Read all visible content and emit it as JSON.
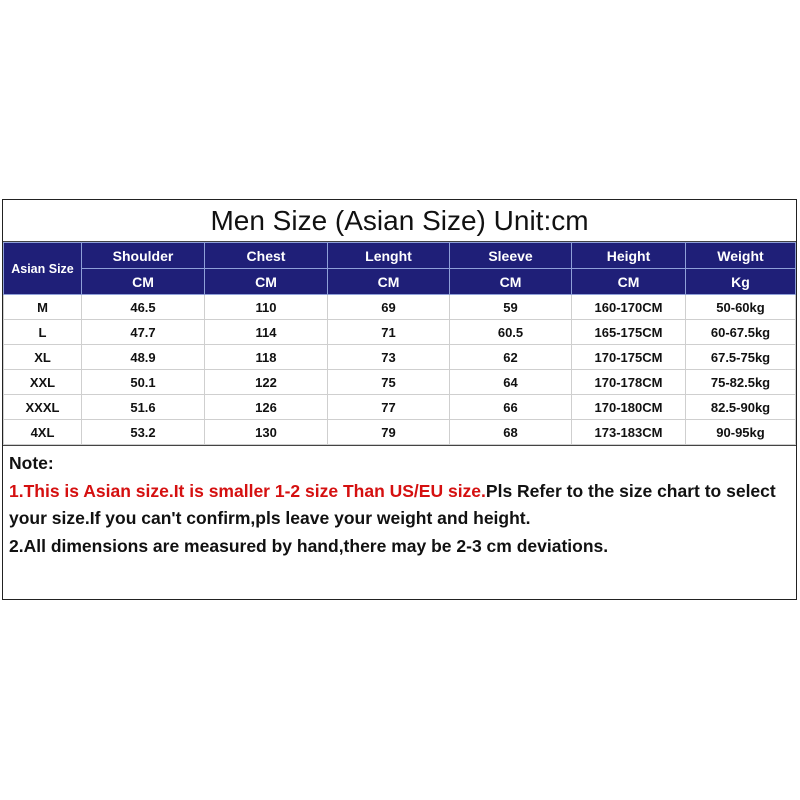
{
  "title": "Men Size (Asian Size) Unit:cm",
  "table": {
    "first_header": "Asian Size",
    "headers": [
      "Shoulder",
      "Chest",
      "Lenght",
      "Sleeve",
      "Height",
      "Weight"
    ],
    "units": [
      "CM",
      "CM",
      "CM",
      "CM",
      "CM",
      "Kg"
    ],
    "rows": [
      [
        "M",
        "46.5",
        "110",
        "69",
        "59",
        "160-170CM",
        "50-60kg"
      ],
      [
        "L",
        "47.7",
        "114",
        "71",
        "60.5",
        "165-175CM",
        "60-67.5kg"
      ],
      [
        "XL",
        "48.9",
        "118",
        "73",
        "62",
        "170-175CM",
        "67.5-75kg"
      ],
      [
        "XXL",
        "50.1",
        "122",
        "75",
        "64",
        "170-178CM",
        "75-82.5kg"
      ],
      [
        "XXXL",
        "51.6",
        "126",
        "77",
        "66",
        "170-180CM",
        "82.5-90kg"
      ],
      [
        "4XL",
        "53.2",
        "130",
        "79",
        "68",
        "173-183CM",
        "90-95kg"
      ]
    ]
  },
  "note": {
    "heading": "Note:",
    "line1_red": "1.This is Asian size.It is smaller 1-2 size Than US/EU size.",
    "line1_rest": "Pls Refer to the size chart to select your size.If you can't confirm,pls leave your weight and height.",
    "line2": "2.All dimensions are measured by hand,there may be 2-3 cm deviations."
  },
  "colors": {
    "header_bg": "#1f1f78",
    "note_red": "#d51010"
  }
}
